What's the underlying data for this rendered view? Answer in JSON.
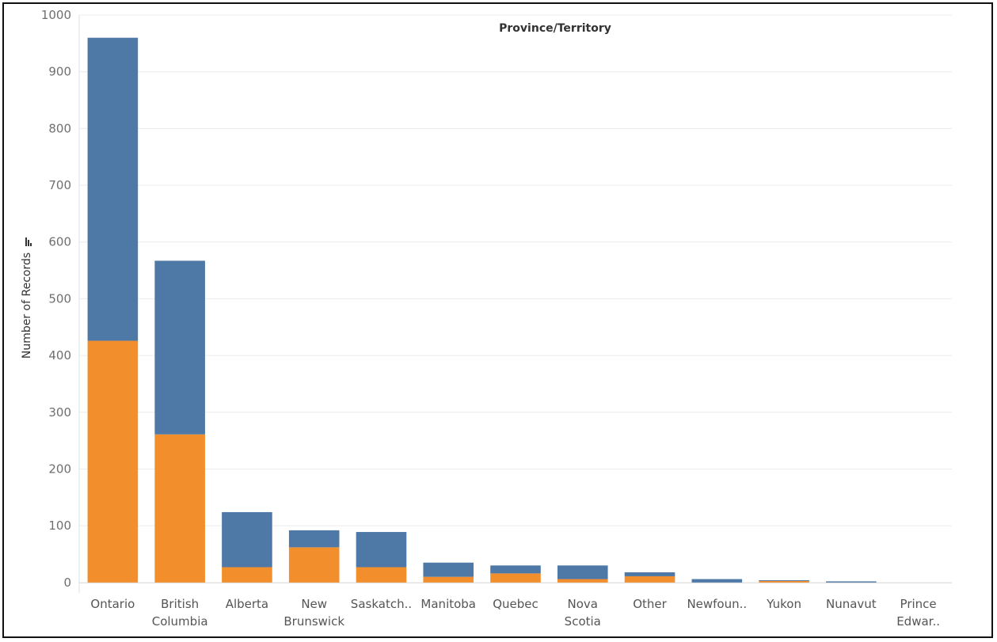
{
  "chart_data": {
    "type": "bar",
    "stacked": true,
    "title": "Province/Territory",
    "ylabel": "Number of Records",
    "xlabel": "",
    "ylim": [
      -10,
      1000
    ],
    "yticks": [
      0,
      100,
      200,
      300,
      400,
      500,
      600,
      700,
      800,
      900,
      1000
    ],
    "grid": true,
    "legend": "none",
    "categories": [
      [
        "Ontario"
      ],
      [
        "British",
        "Columbia"
      ],
      [
        "Alberta"
      ],
      [
        "New",
        "Brunswick"
      ],
      [
        "Saskatch.."
      ],
      [
        "Manitoba"
      ],
      [
        "Quebec"
      ],
      [
        "Nova",
        "Scotia"
      ],
      [
        "Other"
      ],
      [
        "Newfoun.."
      ],
      [
        "Yukon"
      ],
      [
        "Nunavut"
      ],
      [
        "Prince",
        "Edwar.."
      ]
    ],
    "series": [
      {
        "color": "#f28e2b",
        "values": [
          426,
          261,
          27,
          62,
          27,
          10,
          16,
          6,
          11,
          0,
          3,
          0,
          0
        ]
      },
      {
        "color": "#4e79a7",
        "values": [
          534,
          306,
          97,
          30,
          62,
          25,
          14,
          24,
          7,
          6,
          1,
          2,
          0
        ]
      }
    ]
  }
}
